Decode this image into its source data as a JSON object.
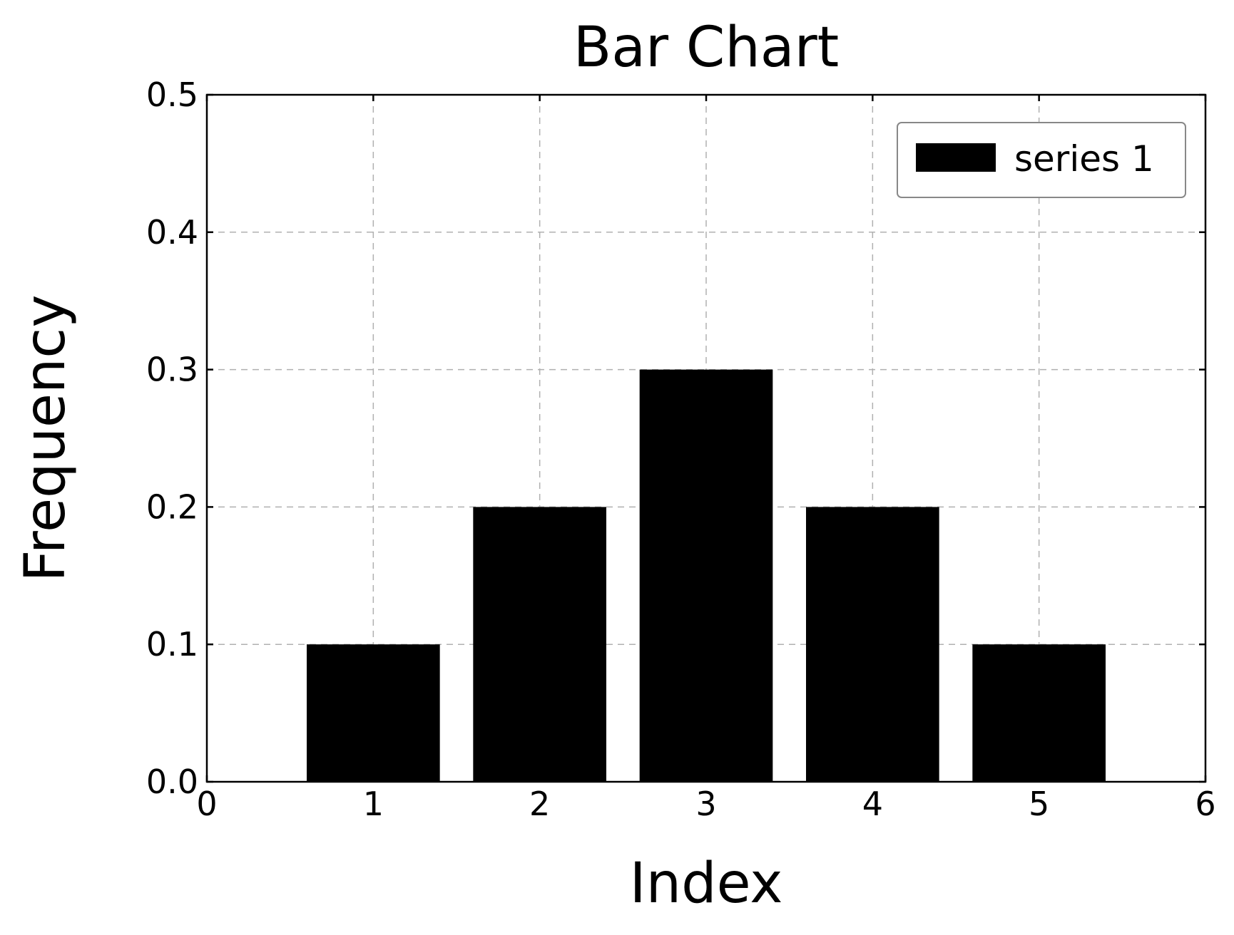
{
  "chart_data": {
    "type": "bar",
    "title": "Bar Chart",
    "xlabel": "Index",
    "ylabel": "Frequency",
    "x": [
      1,
      2,
      3,
      4,
      5
    ],
    "series": [
      {
        "name": "series 1",
        "values": [
          0.1,
          0.2,
          0.3,
          0.2,
          0.1
        ]
      }
    ],
    "bar_width": 0.8,
    "xlim": [
      0,
      6
    ],
    "ylim": [
      0,
      0.5
    ],
    "xticks": [
      "0",
      "1",
      "2",
      "3",
      "4",
      "5",
      "6"
    ],
    "yticks": [
      "0.0",
      "0.1",
      "0.2",
      "0.3",
      "0.4",
      "0.5"
    ],
    "grid": true,
    "legend": "top-right",
    "colors": {
      "bar": "#000000",
      "grid": "#b0b0b0",
      "axes": "#000000",
      "legend_border": "#888888"
    }
  }
}
